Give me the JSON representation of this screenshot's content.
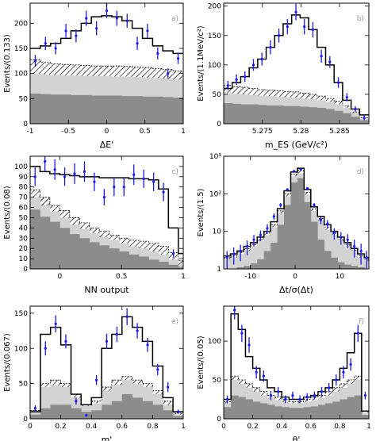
{
  "chart_data": [
    {
      "type": "bar",
      "panel_label": "a)",
      "xlabel": "ΔE'",
      "ylabel": "Events/(0.133)",
      "xlim": [
        -1,
        1
      ],
      "ylim": [
        0,
        240
      ],
      "x_ticks": [
        -1,
        -0.5,
        0,
        0.5,
        1
      ],
      "x_tick_labels": [
        "-1",
        "-0.5",
        "0",
        "0.5",
        "1"
      ],
      "y_ticks": [
        0,
        50,
        100,
        150,
        200
      ],
      "y_tick_labels": [
        "0",
        "50",
        "100",
        "150",
        "200"
      ],
      "bin_edges": [
        -1,
        -0.867,
        -0.733,
        -0.6,
        -0.467,
        -0.333,
        -0.2,
        -0.067,
        0.067,
        0.2,
        0.333,
        0.467,
        0.6,
        0.733,
        0.867,
        1
      ],
      "series": [
        {
          "role": "total_fit",
          "values": [
            150,
            155,
            160,
            170,
            185,
            200,
            213,
            215,
            213,
            205,
            190,
            170,
            155,
            145,
            140
          ]
        },
        {
          "role": "background_hatched",
          "values": [
            127,
            122,
            119,
            118,
            117,
            116,
            115,
            115,
            115,
            114,
            113,
            112,
            110,
            108,
            105
          ]
        },
        {
          "role": "background_light",
          "values": [
            100,
            98,
            97,
            96,
            96,
            95,
            95,
            95,
            94,
            94,
            93,
            92,
            91,
            90,
            88
          ]
        },
        {
          "role": "background_dark",
          "values": [
            60,
            59,
            58,
            58,
            57,
            57,
            56,
            56,
            56,
            55,
            55,
            54,
            54,
            53,
            52
          ]
        }
      ],
      "data_points": {
        "x": [
          -0.933,
          -0.8,
          -0.667,
          -0.533,
          -0.4,
          -0.267,
          -0.133,
          0,
          0.133,
          0.267,
          0.4,
          0.533,
          0.667,
          0.8,
          0.933
        ],
        "y": [
          125,
          160,
          150,
          185,
          175,
          210,
          190,
          225,
          210,
          205,
          160,
          185,
          140,
          100,
          130
        ],
        "err": [
          12,
          13,
          12,
          14,
          13,
          15,
          14,
          15,
          15,
          14,
          13,
          14,
          12,
          10,
          11
        ]
      }
    },
    {
      "type": "bar",
      "panel_label": "b)",
      "xlabel": "m_ES (GeV/c²)",
      "ylabel": "Events/(1.1MeV/c²)",
      "xlim": [
        5.27,
        5.2888
      ],
      "ylim": [
        0,
        205
      ],
      "x_ticks": [
        5.275,
        5.28,
        5.285
      ],
      "x_tick_labels": [
        "5.275",
        "5.28",
        "5.285"
      ],
      "y_ticks": [
        0,
        50,
        100,
        150,
        200
      ],
      "y_tick_labels": [
        "0",
        "50",
        "100",
        "150",
        "200"
      ],
      "bin_edges": [
        5.27,
        5.2711,
        5.2722,
        5.2733,
        5.2744,
        5.2755,
        5.2766,
        5.2777,
        5.2788,
        5.2799,
        5.281,
        5.2821,
        5.2832,
        5.2843,
        5.2854,
        5.2865,
        5.2876,
        5.2888
      ],
      "series": [
        {
          "role": "total_fit",
          "values": [
            60,
            70,
            80,
            95,
            110,
            130,
            150,
            170,
            185,
            180,
            160,
            130,
            100,
            70,
            40,
            25,
            15
          ]
        },
        {
          "role": "background_hatched",
          "values": [
            65,
            63,
            62,
            60,
            58,
            57,
            56,
            55,
            54,
            52,
            50,
            47,
            43,
            38,
            30,
            20,
            10
          ]
        },
        {
          "role": "background_light",
          "values": [
            52,
            51,
            50,
            49,
            48,
            47,
            46,
            45,
            44,
            43,
            42,
            40,
            37,
            33,
            27,
            18,
            9
          ]
        },
        {
          "role": "background_dark",
          "values": [
            35,
            34,
            33,
            33,
            32,
            31,
            31,
            30,
            30,
            29,
            28,
            27,
            25,
            22,
            18,
            12,
            6
          ]
        }
      ],
      "data_points": {
        "x": [
          5.27055,
          5.27165,
          5.27275,
          5.27385,
          5.27495,
          5.27605,
          5.27715,
          5.27825,
          5.27935,
          5.28045,
          5.28155,
          5.28265,
          5.28375,
          5.28485,
          5.28595,
          5.28705,
          5.2882
        ],
        "y": [
          65,
          75,
          80,
          100,
          110,
          130,
          150,
          165,
          190,
          165,
          160,
          115,
          105,
          70,
          45,
          25,
          10
        ],
        "err": [
          8,
          9,
          9,
          10,
          11,
          12,
          12,
          13,
          14,
          13,
          13,
          11,
          10,
          9,
          7,
          5,
          4
        ]
      }
    },
    {
      "type": "bar",
      "panel_label": "c)",
      "xlabel": "NN output",
      "ylabel": "Events/(0.08)",
      "xlim": [
        -0.24,
        1
      ],
      "ylim": [
        0,
        110
      ],
      "x_ticks": [
        0,
        0.5,
        1
      ],
      "x_tick_labels": [
        "0",
        "0.5",
        "1"
      ],
      "y_ticks": [
        0,
        10,
        20,
        30,
        40,
        50,
        60,
        70,
        80,
        90,
        100
      ],
      "y_tick_labels": [
        "0",
        "10",
        "20",
        "30",
        "40",
        "50",
        "60",
        "70",
        "80",
        "90",
        "100"
      ],
      "bin_edges": [
        -0.24,
        -0.16,
        -0.08,
        0,
        0.08,
        0.16,
        0.24,
        0.32,
        0.4,
        0.48,
        0.56,
        0.64,
        0.72,
        0.8,
        0.88,
        0.96,
        1
      ],
      "series": [
        {
          "role": "total_fit",
          "values": [
            100,
            95,
            93,
            92,
            91,
            90,
            90,
            89,
            89,
            89,
            88,
            88,
            87,
            78,
            40,
            15
          ]
        },
        {
          "role": "background_hatched",
          "values": [
            77,
            70,
            62,
            57,
            50,
            45,
            40,
            37,
            33,
            30,
            28,
            27,
            25,
            22,
            16,
            8
          ]
        },
        {
          "role": "background_light",
          "values": [
            70,
            62,
            56,
            50,
            43,
            39,
            35,
            31,
            28,
            25,
            22,
            20,
            17,
            14,
            9,
            4
          ]
        },
        {
          "role": "background_dark",
          "values": [
            58,
            51,
            46,
            40,
            34,
            30,
            26,
            23,
            20,
            17,
            14,
            12,
            9,
            7,
            4,
            2
          ]
        }
      ],
      "data_points": {
        "x": [
          -0.2,
          -0.12,
          -0.04,
          0.04,
          0.12,
          0.2,
          0.28,
          0.36,
          0.44,
          0.52,
          0.6,
          0.68,
          0.76,
          0.84,
          0.92
        ],
        "y": [
          90,
          105,
          97,
          90,
          93,
          95,
          85,
          70,
          80,
          80,
          92,
          88,
          85,
          75,
          15
        ],
        "err": [
          9,
          10,
          10,
          9,
          10,
          10,
          9,
          8,
          9,
          9,
          10,
          9,
          9,
          9,
          4
        ]
      }
    },
    {
      "type": "bar",
      "panel_label": "d)",
      "xlabel": "Δt/σ(Δt)",
      "ylabel": "Events/(1.5)",
      "ylog": true,
      "xlim": [
        -16,
        16.5
      ],
      "ylim": [
        1,
        1000
      ],
      "x_ticks": [
        -10,
        0,
        10
      ],
      "x_tick_labels": [
        "-10",
        "0",
        "10"
      ],
      "y_ticks": [
        1,
        10,
        100,
        1000
      ],
      "y_tick_labels": [
        "1",
        "10",
        "10²",
        "10³"
      ],
      "bin_edges": [
        -16,
        -14.5,
        -13,
        -11.5,
        -10,
        -8.5,
        -7,
        -5.5,
        -4,
        -2.5,
        -1,
        0.5,
        2,
        3.5,
        5,
        6.5,
        8,
        9.5,
        11,
        12.5,
        14,
        15.5,
        16.5
      ],
      "series": [
        {
          "role": "total_fit",
          "values": [
            2.2,
            2.5,
            3,
            4,
            5,
            7,
            10,
            18,
            40,
            120,
            380,
            480,
            130,
            45,
            25,
            15,
            10,
            7,
            5,
            3.5,
            2.5,
            2
          ]
        },
        {
          "role": "background_hatched",
          "values": [
            2,
            2.2,
            2.8,
            3.5,
            4.5,
            6,
            9,
            15,
            35,
            100,
            330,
            420,
            110,
            40,
            22,
            13,
            9,
            6,
            4.5,
            3.2,
            2.2,
            1.8
          ]
        },
        {
          "role": "background_light",
          "values": [
            1.8,
            2,
            2.5,
            3,
            4,
            5.5,
            8,
            13,
            30,
            85,
            290,
            350,
            95,
            35,
            19,
            11,
            8,
            5.5,
            4,
            3,
            2,
            1.6
          ]
        },
        {
          "role": "background_dark",
          "values": [
            1,
            1,
            1.1,
            1.2,
            1.4,
            1.8,
            3,
            5,
            15,
            50,
            200,
            260,
            60,
            18,
            6,
            3,
            2,
            1.5,
            1.3,
            1.2,
            1.1,
            1
          ]
        }
      ],
      "data_points": {
        "x": [
          -15.25,
          -13.75,
          -12.25,
          -10.75,
          -9.25,
          -7.75,
          -6.25,
          -4.75,
          -3.25,
          -1.75,
          -0.25,
          1.25,
          2.75,
          4.25,
          5.75,
          7.25,
          8.75,
          10.25,
          11.75,
          13.25,
          14.75,
          16
        ],
        "y": [
          2,
          2.5,
          3,
          4,
          6,
          8,
          12,
          25,
          50,
          130,
          400,
          450,
          140,
          50,
          20,
          16,
          9,
          7,
          6,
          4,
          3,
          2
        ],
        "err": [
          1,
          1.2,
          1.4,
          1.7,
          2,
          2.5,
          3.5,
          5,
          7,
          11,
          20,
          21,
          12,
          7,
          4.5,
          4,
          3,
          2.6,
          2.4,
          2,
          1.7,
          1
        ]
      }
    },
    {
      "type": "bar",
      "panel_label": "e)",
      "xlabel": "m'",
      "ylabel": "Events/(0.067)",
      "xlim": [
        0,
        1
      ],
      "ylim": [
        0,
        160
      ],
      "x_ticks": [
        0,
        0.2,
        0.4,
        0.6,
        0.8,
        1
      ],
      "x_tick_labels": [
        "0",
        "0.2",
        "0.4",
        "0.6",
        "0.8",
        "1"
      ],
      "y_ticks": [
        0,
        50,
        100,
        150
      ],
      "y_tick_labels": [
        "0",
        "50",
        "100",
        "150"
      ],
      "bin_edges": [
        0,
        0.067,
        0.133,
        0.2,
        0.267,
        0.333,
        0.4,
        0.467,
        0.533,
        0.6,
        0.667,
        0.733,
        0.8,
        0.867,
        0.933,
        1
      ],
      "series": [
        {
          "role": "total_fit",
          "values": [
            10,
            120,
            130,
            105,
            35,
            20,
            30,
            100,
            120,
            145,
            130,
            110,
            75,
            30,
            10
          ]
        },
        {
          "role": "background_hatched",
          "values": [
            12,
            50,
            55,
            50,
            35,
            20,
            25,
            45,
            55,
            60,
            55,
            50,
            40,
            25,
            8
          ]
        },
        {
          "role": "background_light",
          "values": [
            10,
            45,
            48,
            45,
            30,
            18,
            22,
            40,
            48,
            55,
            50,
            45,
            35,
            20,
            6
          ]
        },
        {
          "role": "background_dark",
          "values": [
            6,
            15,
            20,
            20,
            15,
            10,
            12,
            20,
            25,
            35,
            30,
            25,
            20,
            12,
            4
          ]
        }
      ],
      "data_points": {
        "x": [
          0.033,
          0.1,
          0.167,
          0.233,
          0.3,
          0.367,
          0.433,
          0.5,
          0.567,
          0.633,
          0.7,
          0.767,
          0.833,
          0.9,
          0.967
        ],
        "y": [
          15,
          100,
          135,
          110,
          25,
          5,
          55,
          110,
          120,
          145,
          125,
          105,
          70,
          45,
          10
        ],
        "err": [
          4,
          10,
          12,
          10,
          5,
          2,
          7,
          11,
          11,
          12,
          11,
          10,
          8,
          7,
          3
        ]
      }
    },
    {
      "type": "bar",
      "panel_label": "f)",
      "xlabel": "θ'",
      "ylabel": "Events/(0.05)",
      "xlim": [
        0,
        1
      ],
      "ylim": [
        0,
        145
      ],
      "x_ticks": [
        0,
        0.2,
        0.4,
        0.6,
        0.8,
        1
      ],
      "x_tick_labels": [
        "0",
        "0.2",
        "0.4",
        "0.6",
        "0.8",
        "1"
      ],
      "y_ticks": [
        0,
        50,
        100
      ],
      "y_tick_labels": [
        "0",
        "50",
        "100"
      ],
      "bin_edges": [
        0,
        0.05,
        0.1,
        0.15,
        0.2,
        0.25,
        0.3,
        0.35,
        0.4,
        0.45,
        0.5,
        0.55,
        0.6,
        0.65,
        0.7,
        0.75,
        0.8,
        0.85,
        0.9,
        0.95,
        1
      ],
      "series": [
        {
          "role": "total_fit",
          "values": [
            25,
            135,
            115,
            80,
            65,
            50,
            40,
            35,
            28,
            25,
            25,
            28,
            30,
            35,
            40,
            50,
            65,
            85,
            110,
            10
          ]
        },
        {
          "role": "background_hatched",
          "values": [
            22,
            55,
            50,
            45,
            40,
            35,
            30,
            28,
            25,
            22,
            22,
            25,
            28,
            30,
            35,
            40,
            45,
            50,
            55,
            10
          ]
        },
        {
          "role": "background_light",
          "values": [
            20,
            50,
            45,
            40,
            35,
            30,
            27,
            24,
            22,
            20,
            20,
            22,
            24,
            27,
            30,
            35,
            40,
            45,
            50,
            8
          ]
        },
        {
          "role": "background_dark",
          "values": [
            15,
            30,
            28,
            25,
            22,
            20,
            18,
            16,
            15,
            14,
            14,
            15,
            16,
            18,
            20,
            22,
            25,
            28,
            30,
            5
          ]
        }
      ],
      "data_points": {
        "x": [
          0.025,
          0.075,
          0.125,
          0.175,
          0.225,
          0.275,
          0.325,
          0.375,
          0.425,
          0.475,
          0.525,
          0.575,
          0.625,
          0.675,
          0.725,
          0.775,
          0.825,
          0.875,
          0.925,
          0.975
        ],
        "y": [
          25,
          140,
          110,
          95,
          60,
          55,
          30,
          35,
          25,
          30,
          25,
          28,
          30,
          35,
          40,
          50,
          60,
          70,
          110,
          30
        ],
        "err": [
          5,
          12,
          11,
          10,
          8,
          7,
          6,
          6,
          5,
          5,
          5,
          5,
          5,
          6,
          6,
          7,
          8,
          8,
          11,
          5
        ]
      }
    }
  ]
}
